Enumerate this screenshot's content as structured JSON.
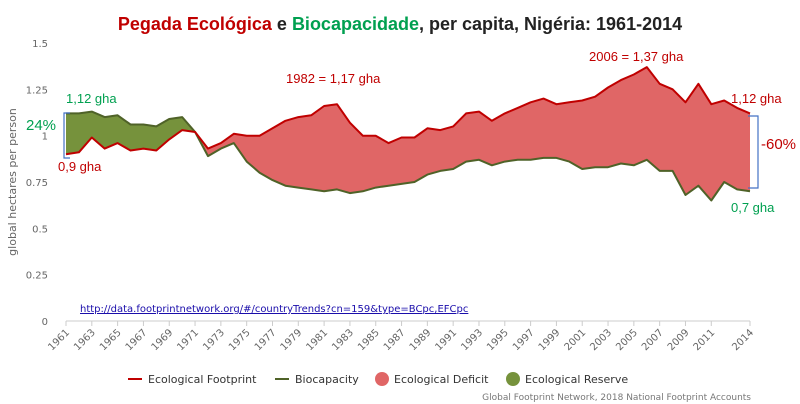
{
  "title": {
    "part1": "Pegada Ecológica",
    "part2": " e ",
    "part3": "Biocapacidade",
    "part4": ", per capita, Nigéria: 1961-2014"
  },
  "colors": {
    "footprint": "#c00000",
    "biocapacity": "#4f6228",
    "deficit": "#e06666",
    "reserve": "#76923c",
    "title_footprint": "#c00000",
    "title_biocapacity": "#00a050",
    "green_text": "#00a050",
    "red_text": "#c00000"
  },
  "annotations": {
    "start_footprint": "0,9 gha",
    "start_biocapacity": "1,12 gha",
    "peak_1982": "1982 = 1,17 gha",
    "peak_2006": "2006 = 1,37 gha",
    "end_footprint": "1,12 gha",
    "end_biocapacity": "0,7 gha",
    "reserve_pct": "24%",
    "deficit_pct": "-60%"
  },
  "link": "http://data.footprintnetwork.org/#/countryTrends?cn=159&type=BCpc,EFCpc",
  "credit": "Global Footprint Network, 2018 National Footprint Accounts",
  "legend": [
    {
      "label": "Ecological Footprint",
      "kind": "line",
      "color": "#c00000"
    },
    {
      "label": "Biocapacity",
      "kind": "line",
      "color": "#4f6228"
    },
    {
      "label": "Ecological Deficit",
      "kind": "dot",
      "color": "#e06666"
    },
    {
      "label": "Ecological Reserve",
      "kind": "dot",
      "color": "#76923c"
    }
  ],
  "chart_data": {
    "type": "area",
    "ylabel": "global hectares per person",
    "ylim": [
      0,
      1.5
    ],
    "yticks": [
      "0",
      "0.25",
      "0.5",
      "0.75",
      "1",
      "1.25",
      "1.5"
    ],
    "xtick_labels": [
      "1961",
      "1963",
      "1965",
      "1967",
      "1969",
      "1971",
      "1973",
      "1975",
      "1977",
      "1979",
      "1981",
      "1983",
      "1985",
      "1987",
      "1989",
      "1991",
      "1993",
      "1995",
      "1997",
      "1999",
      "2001",
      "2003",
      "2005",
      "2007",
      "2009",
      "2011",
      "2014"
    ],
    "x": [
      1961,
      1962,
      1963,
      1964,
      1965,
      1966,
      1967,
      1968,
      1969,
      1970,
      1971,
      1972,
      1973,
      1974,
      1975,
      1976,
      1977,
      1978,
      1979,
      1980,
      1981,
      1982,
      1983,
      1984,
      1985,
      1986,
      1987,
      1988,
      1989,
      1990,
      1991,
      1992,
      1993,
      1994,
      1995,
      1996,
      1997,
      1998,
      1999,
      2000,
      2001,
      2002,
      2003,
      2004,
      2005,
      2006,
      2007,
      2008,
      2009,
      2010,
      2011,
      2012,
      2013,
      2014
    ],
    "series": [
      {
        "name": "Ecological Footprint",
        "values": [
          0.9,
          0.91,
          0.99,
          0.93,
          0.96,
          0.92,
          0.93,
          0.92,
          0.98,
          1.03,
          1.02,
          0.93,
          0.96,
          1.01,
          1.0,
          1.0,
          1.04,
          1.08,
          1.1,
          1.11,
          1.16,
          1.17,
          1.07,
          1.0,
          1.0,
          0.96,
          0.99,
          0.99,
          1.04,
          1.03,
          1.05,
          1.12,
          1.13,
          1.08,
          1.12,
          1.15,
          1.18,
          1.2,
          1.17,
          1.18,
          1.19,
          1.21,
          1.26,
          1.3,
          1.33,
          1.37,
          1.28,
          1.25,
          1.18,
          1.28,
          1.17,
          1.19,
          1.15,
          1.12
        ]
      },
      {
        "name": "Biocapacity",
        "values": [
          1.12,
          1.12,
          1.13,
          1.1,
          1.11,
          1.06,
          1.06,
          1.05,
          1.09,
          1.1,
          1.02,
          0.89,
          0.93,
          0.96,
          0.86,
          0.8,
          0.76,
          0.73,
          0.72,
          0.71,
          0.7,
          0.71,
          0.69,
          0.7,
          0.72,
          0.73,
          0.74,
          0.75,
          0.79,
          0.81,
          0.82,
          0.86,
          0.87,
          0.84,
          0.86,
          0.87,
          0.87,
          0.88,
          0.88,
          0.86,
          0.82,
          0.83,
          0.83,
          0.85,
          0.84,
          0.87,
          0.81,
          0.81,
          0.68,
          0.73,
          0.65,
          0.75,
          0.71,
          0.7
        ]
      }
    ],
    "legend_position": "bottom",
    "grid": false
  }
}
